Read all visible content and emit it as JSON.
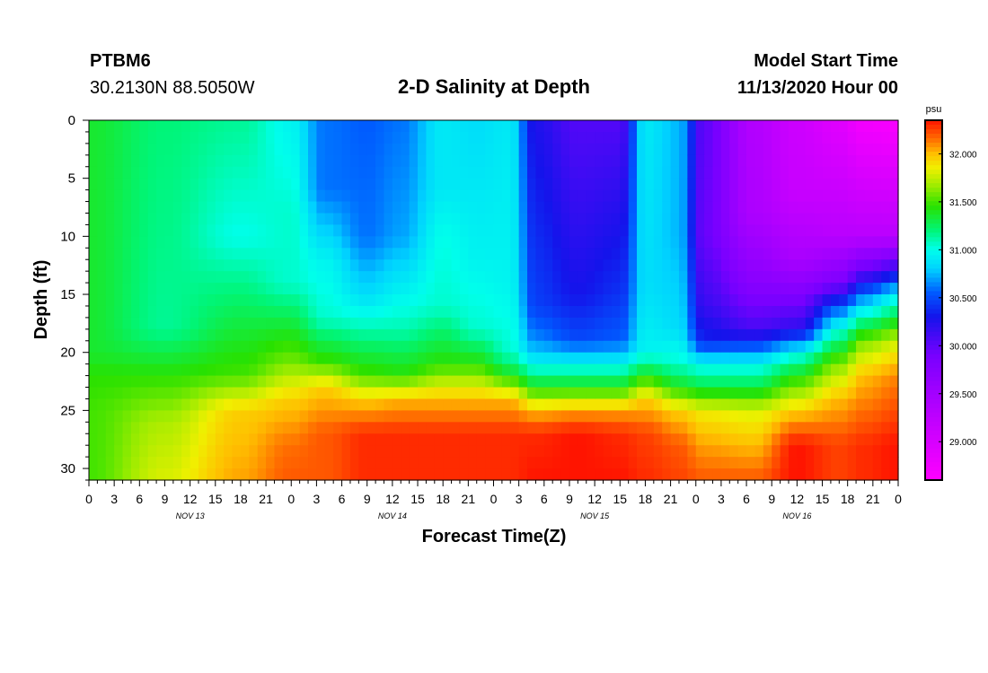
{
  "header": {
    "station": "PTBM6",
    "coords": "30.2130N 88.5050W",
    "title": "2-D Salinity at Depth",
    "model_start_label": "Model Start Time",
    "model_start_value": "11/13/2020 Hour 00"
  },
  "chart_data": {
    "type": "heatmap",
    "title": "2-D Salinity at Depth",
    "xlabel": "Forecast Time(Z)",
    "ylabel": "Depth (ft)",
    "x_ticks": [
      "0",
      "3",
      "6",
      "9",
      "12",
      "15",
      "18",
      "21",
      "0",
      "3",
      "6",
      "9",
      "12",
      "15",
      "18",
      "21",
      "0",
      "3",
      "6",
      "9",
      "12",
      "15",
      "18",
      "21",
      "0",
      "3",
      "6",
      "9",
      "12",
      "15",
      "18",
      "21",
      "0"
    ],
    "day_labels": [
      "NOV 13",
      "NOV 14",
      "NOV 15",
      "NOV 16"
    ],
    "xlim_hours": [
      0,
      96
    ],
    "y_ticks": [
      0,
      5,
      10,
      15,
      20,
      25,
      30
    ],
    "ylim": [
      0,
      31
    ],
    "colorbar": {
      "unit": "psu",
      "ticks": [
        "32.000",
        "31.500",
        "31.000",
        "30.500",
        "30.000",
        "29.500",
        "29.000"
      ],
      "range": [
        28.6,
        32.35
      ]
    },
    "salinity_columns": [
      {
        "hour": 0,
        "profile": [
          [
            0,
            31.35
          ],
          [
            20,
            31.35
          ],
          [
            22,
            31.45
          ],
          [
            25,
            31.5
          ],
          [
            31,
            31.5
          ]
        ]
      },
      {
        "hour": 9,
        "profile": [
          [
            0,
            31.2
          ],
          [
            18,
            31.15
          ],
          [
            22,
            31.45
          ],
          [
            26,
            31.7
          ],
          [
            31,
            31.8
          ]
        ]
      },
      {
        "hour": 18,
        "profile": [
          [
            0,
            31.15
          ],
          [
            10,
            31.0
          ],
          [
            22,
            31.5
          ],
          [
            25,
            31.95
          ],
          [
            31,
            32.05
          ]
        ]
      },
      {
        "hour": 24,
        "profile": [
          [
            0,
            30.95
          ],
          [
            8,
            31.05
          ],
          [
            14,
            31.05
          ],
          [
            21,
            31.6
          ],
          [
            24,
            31.95
          ],
          [
            28,
            32.15
          ],
          [
            31,
            32.2
          ]
        ]
      },
      {
        "hour": 28,
        "profile": [
          [
            0,
            30.6
          ],
          [
            6,
            30.6
          ],
          [
            12,
            30.95
          ],
          [
            17,
            31.05
          ],
          [
            21,
            31.5
          ],
          [
            23,
            31.95
          ],
          [
            27,
            32.2
          ],
          [
            31,
            32.2
          ]
        ]
      },
      {
        "hour": 33,
        "profile": [
          [
            0,
            30.55
          ],
          [
            10,
            30.6
          ],
          [
            15,
            30.85
          ],
          [
            18,
            31.1
          ],
          [
            22,
            31.5
          ],
          [
            24,
            31.95
          ],
          [
            27,
            32.3
          ],
          [
            31,
            32.3
          ]
        ]
      },
      {
        "hour": 37,
        "profile": [
          [
            0,
            30.6
          ],
          [
            10,
            30.7
          ],
          [
            15,
            30.95
          ],
          [
            18,
            31.1
          ],
          [
            22,
            31.45
          ],
          [
            24,
            32.0
          ],
          [
            27,
            32.3
          ],
          [
            31,
            32.3
          ]
        ]
      },
      {
        "hour": 42,
        "profile": [
          [
            0,
            30.9
          ],
          [
            6,
            30.9
          ],
          [
            10,
            31.0
          ],
          [
            16,
            31.05
          ],
          [
            21,
            31.45
          ],
          [
            24,
            32.0
          ],
          [
            27,
            32.3
          ],
          [
            31,
            32.3
          ]
        ]
      },
      {
        "hour": 46,
        "profile": [
          [
            0,
            30.85
          ],
          [
            12,
            30.95
          ],
          [
            18,
            31.05
          ],
          [
            21,
            31.45
          ],
          [
            24,
            32.0
          ],
          [
            27,
            32.3
          ],
          [
            31,
            32.3
          ]
        ]
      },
      {
        "hour": 50,
        "profile": [
          [
            0,
            30.9
          ],
          [
            14,
            30.95
          ],
          [
            20,
            31.05
          ],
          [
            22,
            31.4
          ],
          [
            24,
            32.0
          ],
          [
            27,
            32.3
          ],
          [
            31,
            32.3
          ]
        ]
      },
      {
        "hour": 53,
        "profile": [
          [
            0,
            30.25
          ],
          [
            16,
            30.45
          ],
          [
            19,
            30.65
          ],
          [
            21,
            30.95
          ],
          [
            23,
            31.4
          ],
          [
            25,
            32.0
          ],
          [
            27,
            32.3
          ],
          [
            31,
            32.35
          ]
        ]
      },
      {
        "hour": 58,
        "profile": [
          [
            0,
            30.05
          ],
          [
            15,
            30.3
          ],
          [
            19,
            30.5
          ],
          [
            21,
            30.95
          ],
          [
            23,
            31.4
          ],
          [
            25,
            32.05
          ],
          [
            27,
            32.35
          ],
          [
            31,
            32.35
          ]
        ]
      },
      {
        "hour": 63,
        "profile": [
          [
            0,
            30.05
          ],
          [
            15,
            30.4
          ],
          [
            19,
            30.55
          ],
          [
            21,
            30.95
          ],
          [
            23,
            31.4
          ],
          [
            25,
            32.05
          ],
          [
            27,
            32.3
          ],
          [
            31,
            32.35
          ]
        ]
      },
      {
        "hour": 66,
        "profile": [
          [
            0,
            30.9
          ],
          [
            14,
            30.85
          ],
          [
            20,
            30.95
          ],
          [
            22,
            31.4
          ],
          [
            24,
            31.95
          ],
          [
            27,
            32.25
          ],
          [
            31,
            32.3
          ]
        ]
      },
      {
        "hour": 70,
        "profile": [
          [
            0,
            30.75
          ],
          [
            10,
            30.75
          ],
          [
            18,
            30.85
          ],
          [
            21,
            31.05
          ],
          [
            23,
            31.4
          ],
          [
            25,
            31.95
          ],
          [
            28,
            32.2
          ],
          [
            31,
            32.25
          ]
        ]
      },
      {
        "hour": 73,
        "profile": [
          [
            0,
            30.0
          ],
          [
            10,
            29.95
          ],
          [
            16,
            30.15
          ],
          [
            19,
            30.35
          ],
          [
            21,
            30.95
          ],
          [
            23,
            31.3
          ],
          [
            25,
            31.85
          ],
          [
            28,
            32.05
          ],
          [
            31,
            32.2
          ]
        ]
      },
      {
        "hour": 79,
        "profile": [
          [
            0,
            29.35
          ],
          [
            8,
            29.4
          ],
          [
            14,
            29.75
          ],
          [
            18,
            30.1
          ],
          [
            21,
            30.95
          ],
          [
            23,
            31.3
          ],
          [
            25,
            31.8
          ],
          [
            28,
            32.0
          ],
          [
            31,
            32.2
          ]
        ]
      },
      {
        "hour": 84,
        "profile": [
          [
            0,
            29.1
          ],
          [
            6,
            29.15
          ],
          [
            12,
            29.45
          ],
          [
            18,
            30.2
          ],
          [
            20,
            30.95
          ],
          [
            22,
            31.4
          ],
          [
            25,
            31.95
          ],
          [
            28,
            32.35
          ],
          [
            31,
            32.35
          ]
        ]
      },
      {
        "hour": 89,
        "profile": [
          [
            0,
            28.9
          ],
          [
            10,
            29.3
          ],
          [
            14,
            29.85
          ],
          [
            16,
            30.5
          ],
          [
            18,
            31.0
          ],
          [
            21,
            31.6
          ],
          [
            24,
            32.0
          ],
          [
            28,
            32.25
          ],
          [
            31,
            32.25
          ]
        ]
      },
      {
        "hour": 92,
        "profile": [
          [
            0,
            28.7
          ],
          [
            10,
            29.3
          ],
          [
            13,
            30.0
          ],
          [
            15,
            30.6
          ],
          [
            17,
            31.1
          ],
          [
            19,
            31.6
          ],
          [
            22,
            32.0
          ],
          [
            28,
            32.3
          ],
          [
            31,
            32.3
          ]
        ]
      },
      {
        "hour": 96,
        "profile": [
          [
            0,
            28.65
          ],
          [
            10,
            29.3
          ],
          [
            13,
            30.2
          ],
          [
            15,
            30.9
          ],
          [
            17,
            31.3
          ],
          [
            19,
            31.75
          ],
          [
            22,
            32.1
          ],
          [
            28,
            32.35
          ],
          [
            31,
            32.35
          ]
        ]
      }
    ]
  }
}
